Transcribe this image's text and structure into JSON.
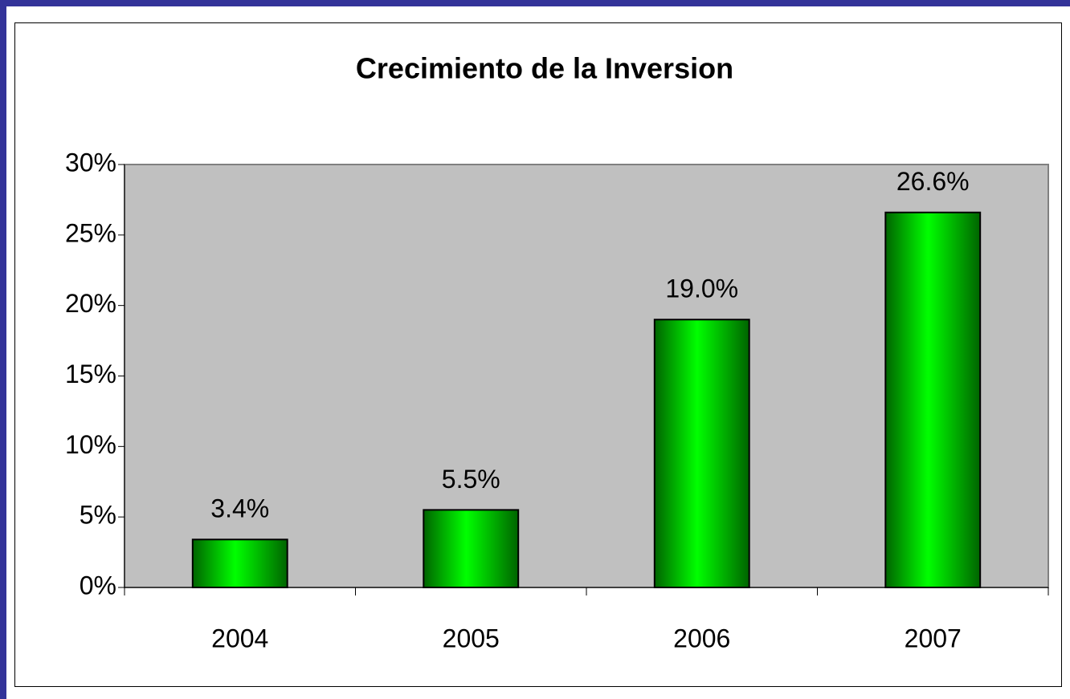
{
  "chart_data": {
    "type": "bar",
    "title": "Crecimiento de la Inversion",
    "categories": [
      "2004",
      "2005",
      "2006",
      "2007"
    ],
    "values": [
      3.4,
      5.5,
      19.0,
      26.6
    ],
    "value_labels": [
      "3.4%",
      "5.5%",
      "19.0%",
      "26.6%"
    ],
    "color": "#00ff00",
    "ylim": [
      0,
      30
    ],
    "yticks": [
      {
        "value": 0,
        "label": "0%"
      },
      {
        "value": 5,
        "label": "5%"
      },
      {
        "value": 10,
        "label": "10%"
      },
      {
        "value": 15,
        "label": "15%"
      },
      {
        "value": 20,
        "label": "20%"
      },
      {
        "value": 25,
        "label": "25%"
      },
      {
        "value": 30,
        "label": "30%"
      }
    ],
    "grid": false
  }
}
